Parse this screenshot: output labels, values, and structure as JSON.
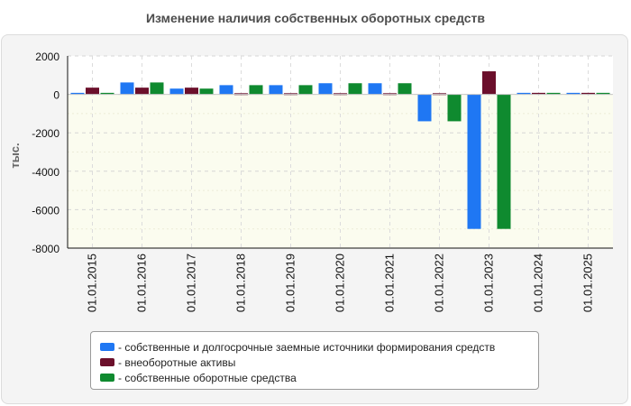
{
  "chart_data": {
    "type": "bar",
    "title": "Изменение наличия собственных оборотных средств",
    "ylabel": "тыс.",
    "xlabel": "",
    "ylim": [
      -8000,
      2000
    ],
    "yticks": [
      2000,
      0,
      -2000,
      -4000,
      -6000,
      -8000
    ],
    "yticklabels": [
      "2000",
      "0",
      "-2000",
      "-4000",
      "-6000",
      "-8000"
    ],
    "categories": [
      "01.01.2015",
      "01.01.2016",
      "01.01.2017",
      "01.01.2018",
      "01.01.2019",
      "01.01.2020",
      "01.01.2021",
      "01.01.2022",
      "01.01.2023",
      "01.01.2024",
      "01.01.2025"
    ],
    "series": [
      {
        "name": "собственные и долгосрочные заемные источники формирования средств",
        "color": "#1f77f3",
        "values": [
          80,
          620,
          300,
          480,
          480,
          580,
          580,
          -1400,
          -7000,
          80,
          80
        ]
      },
      {
        "name": "внеоборотные активы",
        "color": "#6b0f2b",
        "values": [
          350,
          350,
          350,
          60,
          60,
          60,
          60,
          60,
          1200,
          80,
          80
        ]
      },
      {
        "name": "собственные оборотные средства",
        "color": "#0f8a2f",
        "values": [
          80,
          620,
          300,
          480,
          480,
          580,
          580,
          -1400,
          -7000,
          80,
          80
        ]
      }
    ],
    "grid": true,
    "legend": "bottom"
  }
}
